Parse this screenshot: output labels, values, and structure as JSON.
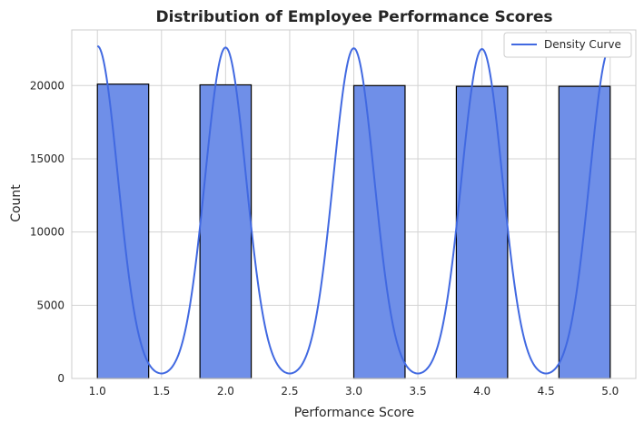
{
  "chart_data": {
    "type": "bar",
    "title": "Distribution of Employee Performance Scores",
    "xlabel": "Performance Score",
    "ylabel": "Count",
    "xlim": [
      0.8,
      5.2
    ],
    "ylim": [
      0,
      23800
    ],
    "xticks": [
      "1.0",
      "1.5",
      "2.0",
      "2.5",
      "3.0",
      "3.5",
      "4.0",
      "4.5",
      "5.0"
    ],
    "yticks": [
      "0",
      "5000",
      "10000",
      "15000",
      "20000"
    ],
    "grid": true,
    "legend_position": "top-right",
    "bars": [
      {
        "x0": 1.0,
        "x1": 1.4,
        "value": 20100
      },
      {
        "x0": 1.8,
        "x1": 2.2,
        "value": 20050
      },
      {
        "x0": 3.0,
        "x1": 3.4,
        "value": 20000
      },
      {
        "x0": 3.8,
        "x1": 4.2,
        "value": 19950
      },
      {
        "x0": 4.6,
        "x1": 5.0,
        "value": 19950
      }
    ],
    "series": [
      {
        "name": "Density Curve",
        "type": "line",
        "peaks": [
          {
            "x": 1.0,
            "y": 22700
          },
          {
            "x": 2.0,
            "y": 22600
          },
          {
            "x": 3.0,
            "y": 22550
          },
          {
            "x": 4.0,
            "y": 22500
          },
          {
            "x": 5.0,
            "y": 22600
          }
        ],
        "bandwidth": 0.16
      }
    ],
    "colors": {
      "bar_fill": "#6f8fe8",
      "bar_edge": "#000000",
      "line": "#4169e1",
      "grid": "#d3d3d3",
      "axes_edge": "#cccccc"
    }
  }
}
